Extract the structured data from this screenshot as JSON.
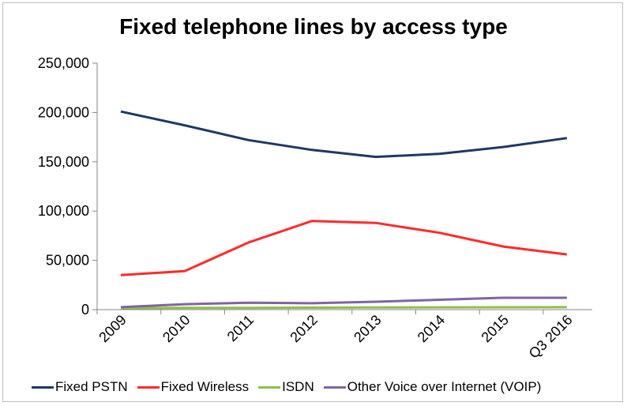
{
  "chart_data": {
    "type": "line",
    "title": "Fixed telephone lines by access type",
    "categories": [
      "2009",
      "2010",
      "2011",
      "2012",
      "2013",
      "2014",
      "2015",
      "Q3 2016"
    ],
    "y_ticks": [
      "0",
      "50,000",
      "100,000",
      "150,000",
      "200,000",
      "250,000"
    ],
    "ylim": [
      0,
      250000
    ],
    "grid": false,
    "legend_position": "bottom",
    "series": [
      {
        "name": "Fixed PSTN",
        "color": "#1f3864",
        "values": [
          201000,
          187000,
          172000,
          162000,
          155000,
          158000,
          165000,
          174000
        ]
      },
      {
        "name": "Fixed Wireless",
        "color": "#ff2a2a",
        "values": [
          35000,
          39000,
          68000,
          90000,
          88000,
          78000,
          64000,
          56000
        ]
      },
      {
        "name": "ISDN",
        "color": "#8fbf4a",
        "values": [
          1500,
          1800,
          1800,
          2000,
          2200,
          2300,
          2400,
          2500
        ]
      },
      {
        "name": "Other Voice over Internet (VOIP)",
        "color": "#8064a2",
        "values": [
          2500,
          5500,
          7000,
          6500,
          8000,
          10000,
          12000,
          12000
        ]
      }
    ]
  }
}
